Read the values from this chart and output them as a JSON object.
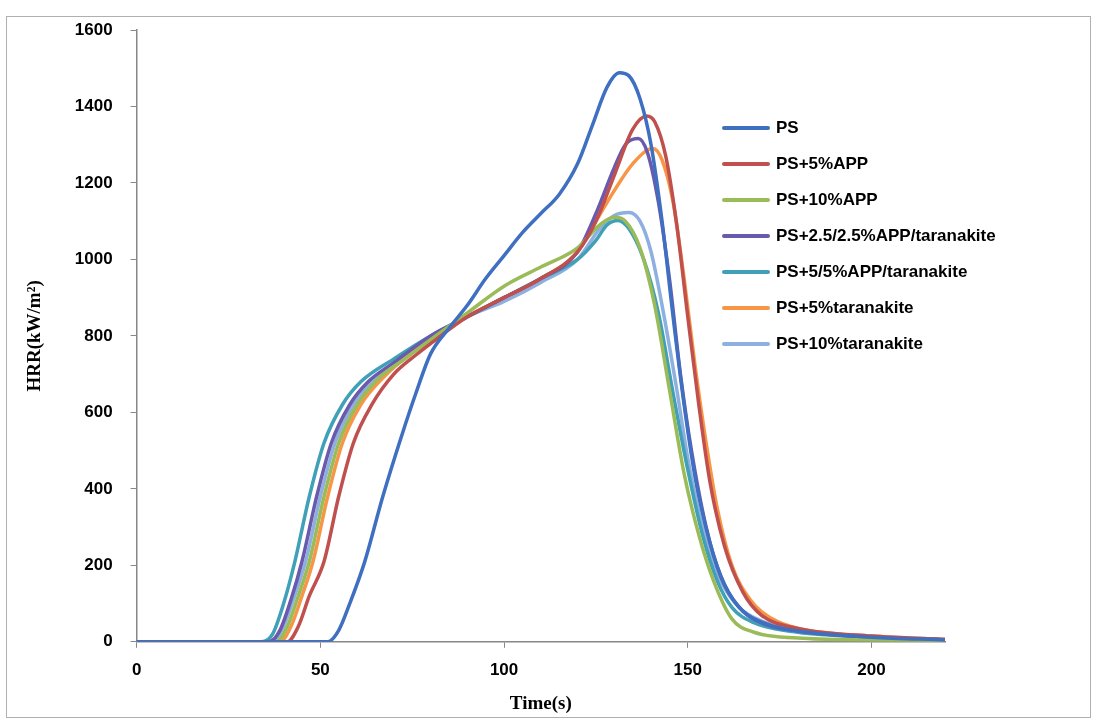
{
  "chart_data": {
    "type": "line",
    "xlabel": "Time(s)",
    "ylabel": "HRR(kW/m²)",
    "xlim": [
      0,
      220
    ],
    "xticks": [
      0,
      50,
      100,
      150,
      200
    ],
    "ylim": [
      0,
      1600
    ],
    "yticks": [
      0,
      200,
      400,
      600,
      800,
      1000,
      1200,
      1400,
      1600
    ],
    "grid": false,
    "legend": "top right",
    "marker": "none",
    "line_style": "solid",
    "series": [
      {
        "name": "PS",
        "color": "#3f6fc0",
        "x": [
          0,
          52,
          55,
          58,
          62,
          67,
          72,
          76,
          80,
          85,
          90,
          95,
          100,
          105,
          110,
          115,
          120,
          124,
          128,
          131.4,
          134,
          137,
          140,
          143,
          146,
          149,
          152,
          156,
          160,
          165,
          172,
          180,
          200,
          220
        ],
        "values": [
          0,
          0,
          30,
          100,
          207,
          380,
          535,
          650,
          753,
          820,
          880,
          950,
          1010,
          1070,
          1120,
          1170,
          1250,
          1350,
          1450,
          1488,
          1480,
          1420,
          1300,
          1100,
          850,
          620,
          430,
          260,
          150,
          80,
          45,
          28,
          12,
          5
        ]
      },
      {
        "name": "PS+5%APP",
        "color": "#c0504d",
        "x": [
          0,
          41,
          44,
          47,
          51,
          55,
          59,
          64,
          70,
          76,
          80,
          90,
          100,
          110,
          120,
          125,
          130,
          135,
          138.8,
          141,
          144,
          147,
          150,
          153,
          156,
          160,
          165,
          170,
          180,
          200,
          220
        ],
        "values": [
          0,
          0,
          40,
          120,
          210,
          380,
          520,
          620,
          700,
          750,
          780,
          850,
          900,
          950,
          1020,
          1100,
          1220,
          1340,
          1375,
          1360,
          1270,
          1090,
          850,
          620,
          420,
          250,
          130,
          70,
          35,
          15,
          6
        ]
      },
      {
        "name": "PS+10%APP",
        "color": "#9bbb59",
        "x": [
          0,
          38,
          41,
          44,
          47,
          51,
          55,
          60,
          66,
          73,
          80,
          90,
          100,
          110,
          120,
          126,
          130,
          133,
          137,
          141,
          145,
          149,
          153,
          157,
          162,
          168,
          180,
          200,
          220
        ],
        "values": [
          0,
          0,
          40,
          120,
          210,
          380,
          520,
          620,
          690,
          740,
          790,
          860,
          930,
          980,
          1030,
          1090,
          1110,
          1100,
          1030,
          880,
          660,
          440,
          280,
          160,
          60,
          25,
          10,
          5,
          3
        ]
      },
      {
        "name": "PS+2.5/2.5%APP/taranakite",
        "color": "#6a5aad",
        "x": [
          0,
          36,
          39,
          42,
          45,
          49,
          53,
          58,
          63,
          70,
          80,
          90,
          100,
          110,
          120,
          125,
          130,
          133,
          136.5,
          139,
          142,
          145,
          148,
          151,
          155,
          159,
          164,
          170,
          180,
          200,
          220
        ],
        "values": [
          0,
          0,
          30,
          110,
          210,
          380,
          520,
          620,
          680,
          730,
          800,
          850,
          900,
          950,
          1020,
          1120,
          1240,
          1300,
          1316,
          1280,
          1150,
          950,
          700,
          500,
          300,
          170,
          90,
          50,
          28,
          12,
          5
        ]
      },
      {
        "name": "PS+5/5%APP/taranakite",
        "color": "#3fa0b8",
        "x": [
          0,
          34,
          37,
          40,
          43,
          47,
          51,
          56,
          61,
          70,
          80,
          90,
          100,
          110,
          120,
          125,
          128,
          131,
          134,
          138,
          142,
          146,
          150,
          154,
          158,
          162,
          168,
          180,
          200,
          220
        ],
        "values": [
          0,
          0,
          20,
          100,
          207,
          380,
          520,
          620,
          680,
          740,
          800,
          850,
          900,
          950,
          1000,
          1050,
          1090,
          1102,
          1080,
          1000,
          860,
          650,
          450,
          280,
          160,
          90,
          50,
          25,
          12,
          5
        ]
      },
      {
        "name": "PS+5%taranakite",
        "color": "#f79646",
        "x": [
          0,
          39,
          42,
          45,
          48,
          52,
          56,
          61,
          67,
          74,
          80,
          90,
          100,
          110,
          120,
          125,
          130,
          135,
          140.5,
          143,
          146,
          149,
          152,
          155,
          158,
          162,
          167,
          173,
          180,
          200,
          220
        ],
        "values": [
          0,
          0,
          40,
          120,
          210,
          380,
          520,
          620,
          690,
          750,
          790,
          850,
          900,
          950,
          1020,
          1100,
          1180,
          1250,
          1290,
          1260,
          1150,
          950,
          720,
          520,
          350,
          200,
          110,
          60,
          35,
          15,
          6
        ]
      },
      {
        "name": "PS+10%taranakite",
        "color": "#8db0e0",
        "x": [
          0,
          37,
          40,
          43,
          46,
          50,
          54,
          59,
          65,
          72,
          80,
          90,
          100,
          110,
          120,
          126,
          130,
          134,
          137,
          140,
          143,
          147,
          150,
          154,
          158,
          163,
          170,
          180,
          200,
          220
        ],
        "values": [
          0,
          0,
          40,
          120,
          210,
          380,
          520,
          620,
          690,
          740,
          790,
          850,
          890,
          940,
          1000,
          1080,
          1115,
          1123,
          1100,
          1020,
          880,
          660,
          480,
          300,
          180,
          100,
          55,
          30,
          14,
          6
        ]
      }
    ]
  }
}
